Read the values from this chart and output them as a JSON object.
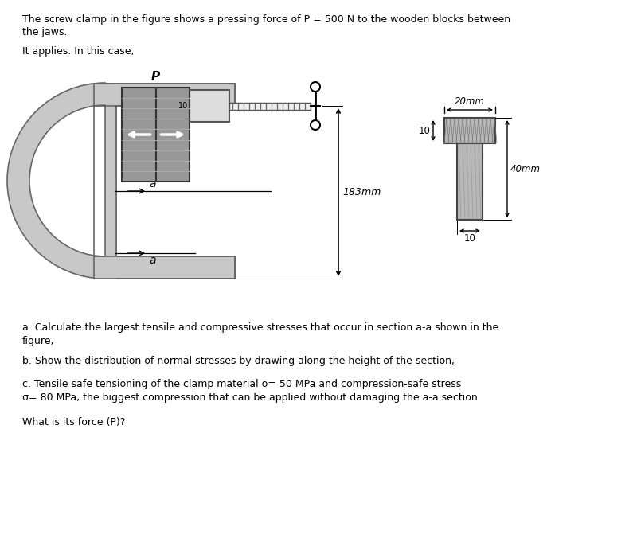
{
  "title_line1": "The screw clamp in the figure shows a pressing force of P = 500 N to the wooden blocks between",
  "title_line2": "the jaws.",
  "title_line3": "It applies. In this case;",
  "dim_20mm": "20mm",
  "dim_183mm": "183mm",
  "dim_40mm": "40mm",
  "dim_10_top": "10",
  "dim_10_bot": "10",
  "label_P": "P",
  "label_a1": "a",
  "label_a2": "a",
  "q_a1": "a. Calculate the largest tensile and compressive stresses that occur in section a-a shown in the",
  "q_a2": "figure,",
  "q_b": "b. Show the distribution of normal stresses by drawing along the height of the section,",
  "q_c": "c. Tensile safe tensioning of the clamp material o= 50 MPa and compression-safe stress",
  "q_d": "σ= 80 MPa, the biggest compression that can be applied without damaging the a-a section",
  "q_e": "What is its force (P)?",
  "bg_color": "#ffffff",
  "text_color": "#000000",
  "clamp_fill": "#c8c8c8",
  "clamp_edge": "#666666",
  "wood_fill1": "#888888",
  "wood_fill2": "#aaaaaa",
  "section_fill": "#b8b8b8",
  "screw_fill": "#e8e8e8"
}
